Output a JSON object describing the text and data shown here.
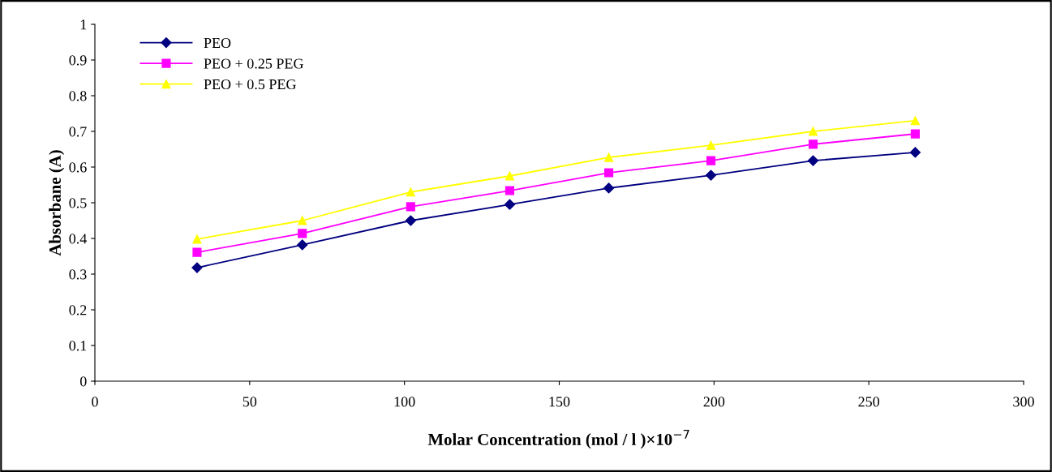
{
  "chart_data": {
    "type": "line",
    "xlabel": "Molar Concentration (mol / l )×10$^{−7}$",
    "ylabel": "Absorbane (A)",
    "x": [
      33,
      67,
      102,
      134,
      166,
      199,
      232,
      265
    ],
    "series": [
      {
        "name": "PEO",
        "color": "#000080",
        "marker": "diamond",
        "values": [
          0.318,
          0.382,
          0.45,
          0.495,
          0.541,
          0.577,
          0.618,
          0.641
        ]
      },
      {
        "name": "PEO + 0.25 PEG",
        "color": "#ff00ff",
        "marker": "square",
        "values": [
          0.361,
          0.414,
          0.489,
          0.534,
          0.584,
          0.618,
          0.664,
          0.693
        ]
      },
      {
        "name": "PEO + 0.5 PEG",
        "color": "#ffff00",
        "marker": "triangle",
        "values": [
          0.398,
          0.45,
          0.53,
          0.575,
          0.627,
          0.661,
          0.7,
          0.73
        ]
      }
    ],
    "xlim": [
      0,
      300
    ],
    "xticks": [
      0,
      50,
      100,
      150,
      200,
      250,
      300
    ],
    "ylim": [
      0,
      1
    ],
    "yticks": [
      0,
      0.1,
      0.2,
      0.3,
      0.4,
      0.5,
      0.6,
      0.7,
      0.8,
      0.9,
      1
    ],
    "grid": false,
    "legend": "top left",
    "line_style": "solid"
  }
}
